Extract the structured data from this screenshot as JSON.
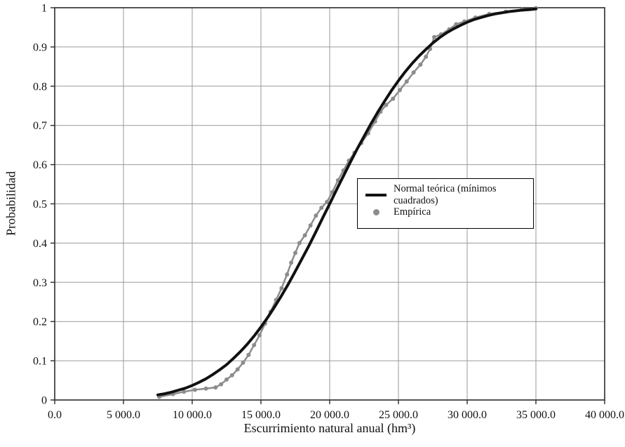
{
  "figure": {
    "xlabel": "Escurrimiento natural anual (hm³)",
    "ylabel": "Probabilidad"
  },
  "chart_data": {
    "type": "line",
    "title": "",
    "xlabel": "Escurrimiento natural anual (hm³)",
    "ylabel": "Probabilidad",
    "xlim": [
      0,
      40000
    ],
    "ylim": [
      0,
      1
    ],
    "grid": true,
    "grid_color": "#9a9a9a",
    "frame_color": "#2b2b2b",
    "legend_position": "middle-right",
    "x_ticks": [
      {
        "v": 0,
        "label": "0.0"
      },
      {
        "v": 5000,
        "label": "5 000.0"
      },
      {
        "v": 10000,
        "label": "10 000.0"
      },
      {
        "v": 15000,
        "label": "15 000.0"
      },
      {
        "v": 20000,
        "label": "20 000.0"
      },
      {
        "v": 25000,
        "label": "25 000.0"
      },
      {
        "v": 30000,
        "label": "30 000.0"
      },
      {
        "v": 35000,
        "label": "35 000.0"
      },
      {
        "v": 40000,
        "label": "40 000.0"
      }
    ],
    "y_ticks": [
      {
        "v": 0,
        "label": "0"
      },
      {
        "v": 0.1,
        "label": "0.1"
      },
      {
        "v": 0.2,
        "label": "0.2"
      },
      {
        "v": 0.3,
        "label": "0.3"
      },
      {
        "v": 0.4,
        "label": "0.4"
      },
      {
        "v": 0.5,
        "label": "0.5"
      },
      {
        "v": 0.6,
        "label": "0.6"
      },
      {
        "v": 0.7,
        "label": "0.7"
      },
      {
        "v": 0.8,
        "label": "0.8"
      },
      {
        "v": 0.9,
        "label": "0.9"
      },
      {
        "v": 1,
        "label": "1"
      }
    ],
    "series": [
      {
        "name": "Normal teórica (mínimos cuadrados)",
        "style": "line",
        "color": "#111111",
        "width": 4,
        "markers": false,
        "points": [
          [
            7500,
            0.013
          ],
          [
            8000,
            0.016
          ],
          [
            8500,
            0.02
          ],
          [
            9000,
            0.025
          ],
          [
            9500,
            0.03
          ],
          [
            10000,
            0.037
          ],
          [
            10500,
            0.045
          ],
          [
            11000,
            0.054
          ],
          [
            11500,
            0.065
          ],
          [
            12000,
            0.077
          ],
          [
            12500,
            0.09
          ],
          [
            13000,
            0.106
          ],
          [
            13500,
            0.123
          ],
          [
            14000,
            0.142
          ],
          [
            14500,
            0.163
          ],
          [
            15000,
            0.186
          ],
          [
            15500,
            0.211
          ],
          [
            16000,
            0.238
          ],
          [
            16500,
            0.266
          ],
          [
            17000,
            0.296
          ],
          [
            17500,
            0.328
          ],
          [
            18000,
            0.361
          ],
          [
            18500,
            0.394
          ],
          [
            19000,
            0.429
          ],
          [
            19500,
            0.465
          ],
          [
            20000,
            0.5
          ],
          [
            20500,
            0.536
          ],
          [
            21000,
            0.571
          ],
          [
            21500,
            0.606
          ],
          [
            22000,
            0.64
          ],
          [
            22500,
            0.672
          ],
          [
            23000,
            0.704
          ],
          [
            23500,
            0.734
          ],
          [
            24000,
            0.762
          ],
          [
            24500,
            0.789
          ],
          [
            25000,
            0.814
          ],
          [
            25500,
            0.837
          ],
          [
            26000,
            0.858
          ],
          [
            26500,
            0.877
          ],
          [
            27000,
            0.894
          ],
          [
            27500,
            0.91
          ],
          [
            28000,
            0.924
          ],
          [
            28500,
            0.936
          ],
          [
            29000,
            0.946
          ],
          [
            29500,
            0.955
          ],
          [
            30000,
            0.963
          ],
          [
            30500,
            0.97
          ],
          [
            31000,
            0.975
          ],
          [
            31500,
            0.98
          ],
          [
            32000,
            0.984
          ],
          [
            32500,
            0.987
          ],
          [
            33000,
            0.99
          ],
          [
            33500,
            0.992
          ],
          [
            34000,
            0.994
          ],
          [
            34500,
            0.995
          ],
          [
            35000,
            0.997
          ]
        ]
      },
      {
        "name": "Empírica",
        "style": "line+markers",
        "color": "#8c8c8c",
        "width": 2.5,
        "markers": true,
        "marker_radius": 3,
        "points": [
          [
            7600,
            0.008
          ],
          [
            8600,
            0.015
          ],
          [
            9400,
            0.021
          ],
          [
            10200,
            0.026
          ],
          [
            11000,
            0.029
          ],
          [
            11700,
            0.032
          ],
          [
            12100,
            0.04
          ],
          [
            12500,
            0.052
          ],
          [
            12900,
            0.063
          ],
          [
            13300,
            0.078
          ],
          [
            13700,
            0.095
          ],
          [
            14100,
            0.115
          ],
          [
            14500,
            0.14
          ],
          [
            14900,
            0.165
          ],
          [
            15300,
            0.195
          ],
          [
            15700,
            0.225
          ],
          [
            16100,
            0.255
          ],
          [
            16500,
            0.285
          ],
          [
            16900,
            0.32
          ],
          [
            17200,
            0.35
          ],
          [
            17500,
            0.375
          ],
          [
            17800,
            0.4
          ],
          [
            18200,
            0.42
          ],
          [
            18600,
            0.445
          ],
          [
            19000,
            0.47
          ],
          [
            19400,
            0.49
          ],
          [
            19800,
            0.505
          ],
          [
            20200,
            0.53
          ],
          [
            20600,
            0.56
          ],
          [
            21000,
            0.585
          ],
          [
            21400,
            0.61
          ],
          [
            21800,
            0.63
          ],
          [
            22300,
            0.655
          ],
          [
            22800,
            0.68
          ],
          [
            23300,
            0.71
          ],
          [
            23700,
            0.735
          ],
          [
            24100,
            0.752
          ],
          [
            24600,
            0.768
          ],
          [
            25100,
            0.79
          ],
          [
            25600,
            0.812
          ],
          [
            26100,
            0.835
          ],
          [
            26600,
            0.855
          ],
          [
            27000,
            0.875
          ],
          [
            27300,
            0.895
          ],
          [
            27600,
            0.925
          ],
          [
            28100,
            0.932
          ],
          [
            28700,
            0.945
          ],
          [
            29200,
            0.958
          ],
          [
            29800,
            0.965
          ],
          [
            30600,
            0.975
          ],
          [
            31600,
            0.984
          ],
          [
            32800,
            0.99
          ],
          [
            34000,
            0.995
          ],
          [
            35000,
            0.999
          ]
        ]
      }
    ]
  }
}
